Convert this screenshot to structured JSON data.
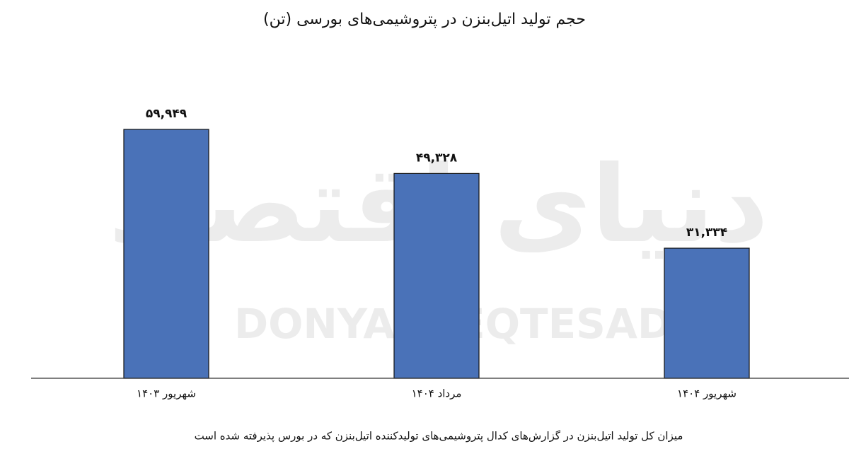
{
  "chart_data": {
    "type": "bar",
    "title": "حجم تولید اتیل‌بنزن در پتروشیمی‌های بورسی (تن)",
    "watermark": [
      "دنیای اقتصاد",
      "DONYA-E-EQTESAD"
    ],
    "categories": [
      "شهریور ۱۴۰۳",
      "مرداد ۱۴۰۴",
      "شهریور ۱۴۰۴"
    ],
    "values": [
      59949,
      49328,
      31334
    ],
    "value_labels": [
      "۵۹,۹۴۹",
      "۴۹,۳۲۸",
      "۳۱,۳۳۴"
    ],
    "color": "#4a72b8",
    "ylim": [
      0,
      70000
    ],
    "caption": "میزان کل تولید اتیل‌بنزن در گزارش‌های کدال پتروشیمی‌های تولیدکننده اتیل‌بنزن که در بورس پذیرفته شده است"
  }
}
